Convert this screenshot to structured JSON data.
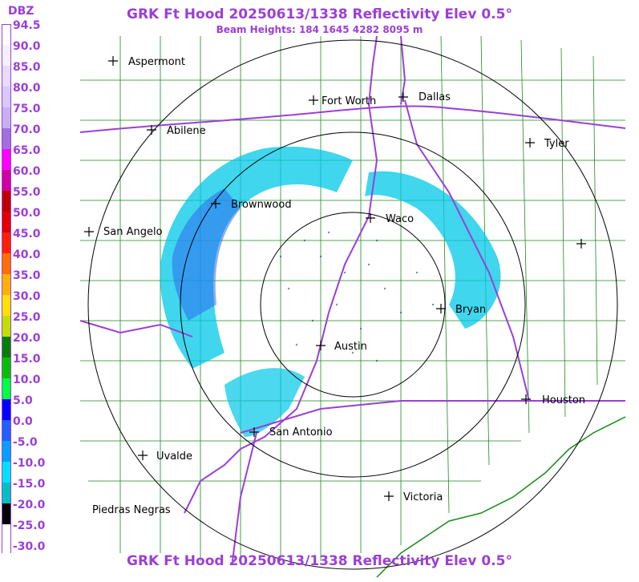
{
  "header": {
    "title": "GRK Ft Hood 20250613/1338 Reflectivity Elev 0.5°",
    "subtitle": "Beam Heights: 184 1645 4282 8095 m",
    "footer_title": "GRK Ft Hood 20250613/1338 Reflectivity Elev 0.5°"
  },
  "legend": {
    "unit": "DBZ",
    "labels": [
      "94.5",
      "90.0",
      "85.0",
      "80.0",
      "75.0",
      "70.0",
      "65.0",
      "60.0",
      "55.0",
      "50.0",
      "45.0",
      "40.0",
      "35.0",
      "30.0",
      "25.0",
      "20.0",
      "15.0",
      "10.0",
      "5.0",
      "0.0",
      "-5.0",
      "-10.0",
      "-15.0",
      "-20.0",
      "-25.0",
      "-30.0"
    ],
    "colors": [
      "#ffffff",
      "#f4f0ff",
      "#e6dcff",
      "#d8c8ff",
      "#c8b0f0",
      "#a070e0",
      "#ff00ff",
      "#d000a0",
      "#c00000",
      "#e00000",
      "#ff2000",
      "#ff7000",
      "#ffb000",
      "#ffe000",
      "#c0e000",
      "#008000",
      "#00c000",
      "#00ff40",
      "#0000ff",
      "#2060ff",
      "#00a0ff",
      "#00e0ff",
      "#00c0c0",
      "#000000",
      "#ffffff",
      "#ffffff"
    ]
  },
  "cities": [
    {
      "name": "Aspermont"
    },
    {
      "name": "Fort Worth"
    },
    {
      "name": "Dallas"
    },
    {
      "name": "Abilene"
    },
    {
      "name": "Tyler"
    },
    {
      "name": "Brownwood"
    },
    {
      "name": "Waco"
    },
    {
      "name": "San Angelo"
    },
    {
      "name": "Bryan"
    },
    {
      "name": "Austin"
    },
    {
      "name": "Houston"
    },
    {
      "name": "San Antonio"
    },
    {
      "name": "Uvalde"
    },
    {
      "name": "Victoria"
    },
    {
      "name": "Piedras Negras"
    },
    {
      "name": ""
    }
  ],
  "colors": {
    "accent": "#9b3fd6",
    "county_lines": "#1a8a1a",
    "highways": "#9b3fd6",
    "range_rings": "#000000"
  }
}
